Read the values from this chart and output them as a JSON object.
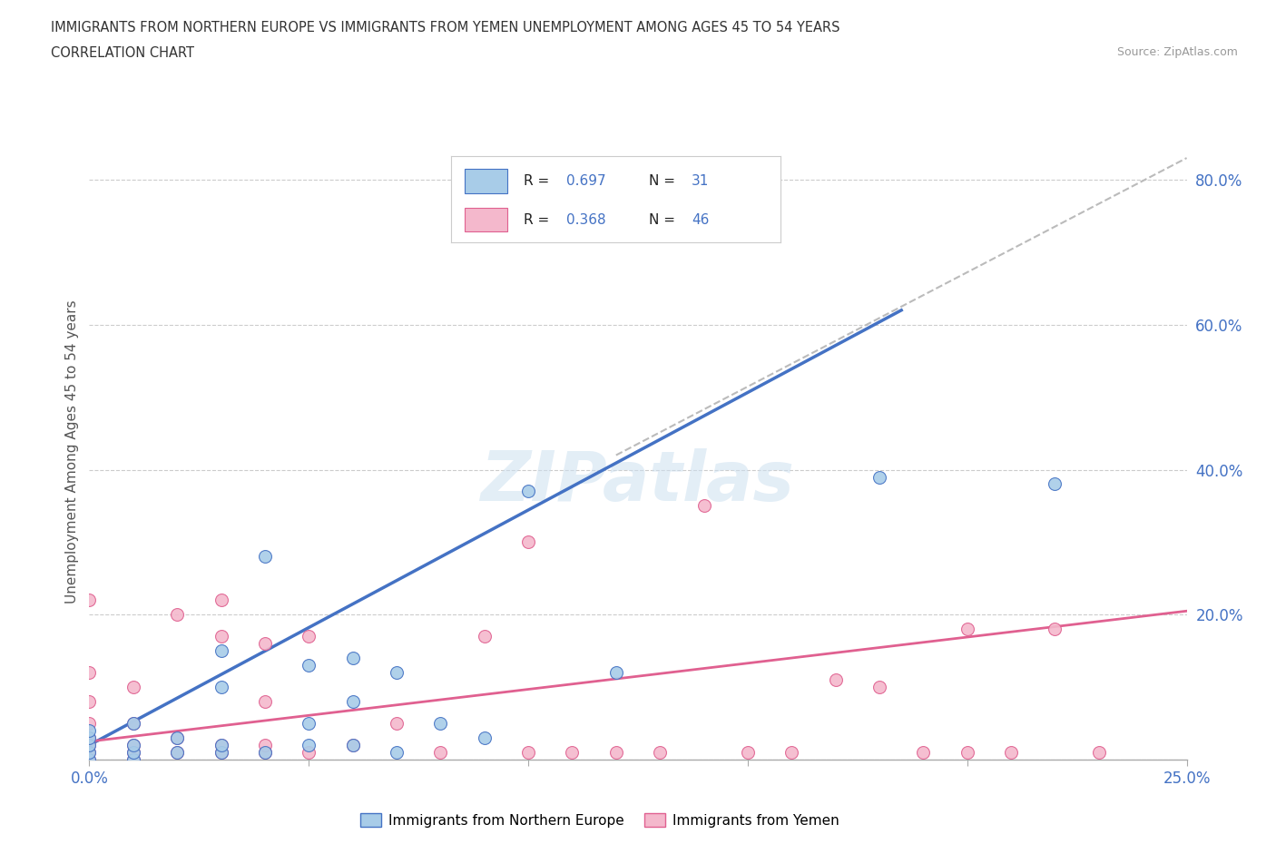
{
  "title_line1": "IMMIGRANTS FROM NORTHERN EUROPE VS IMMIGRANTS FROM YEMEN UNEMPLOYMENT AMONG AGES 45 TO 54 YEARS",
  "title_line2": "CORRELATION CHART",
  "source_text": "Source: ZipAtlas.com",
  "ylabel": "Unemployment Among Ages 45 to 54 years",
  "xlim": [
    0.0,
    0.25
  ],
  "ylim": [
    0.0,
    0.85
  ],
  "xticks": [
    0.0,
    0.05,
    0.1,
    0.15,
    0.2,
    0.25
  ],
  "xtick_labels": [
    "0.0%",
    "",
    "",
    "",
    "",
    "25.0%"
  ],
  "yticks": [
    0.0,
    0.2,
    0.4,
    0.6,
    0.8
  ],
  "ytick_labels": [
    "",
    "20.0%",
    "40.0%",
    "60.0%",
    "80.0%"
  ],
  "watermark": "ZIPatlas",
  "blue_color": "#a8cce8",
  "pink_color": "#f4b8cc",
  "blue_line_color": "#4472c4",
  "pink_line_color": "#e06090",
  "dashed_line_color": "#bbbbbb",
  "tick_color": "#4472c4",
  "background_color": "#ffffff",
  "blue_scatter_x": [
    0.0,
    0.0,
    0.0,
    0.0,
    0.0,
    0.01,
    0.01,
    0.01,
    0.01,
    0.02,
    0.02,
    0.03,
    0.03,
    0.03,
    0.03,
    0.04,
    0.04,
    0.05,
    0.05,
    0.05,
    0.06,
    0.06,
    0.06,
    0.07,
    0.07,
    0.08,
    0.09,
    0.1,
    0.12,
    0.18,
    0.22
  ],
  "blue_scatter_y": [
    0.0,
    0.01,
    0.02,
    0.03,
    0.04,
    0.0,
    0.01,
    0.02,
    0.05,
    0.01,
    0.03,
    0.01,
    0.02,
    0.1,
    0.15,
    0.01,
    0.28,
    0.02,
    0.05,
    0.13,
    0.02,
    0.08,
    0.14,
    0.01,
    0.12,
    0.05,
    0.03,
    0.37,
    0.12,
    0.39,
    0.38
  ],
  "pink_scatter_x": [
    0.0,
    0.0,
    0.0,
    0.0,
    0.0,
    0.0,
    0.0,
    0.0,
    0.01,
    0.01,
    0.01,
    0.01,
    0.01,
    0.02,
    0.02,
    0.02,
    0.03,
    0.03,
    0.03,
    0.03,
    0.04,
    0.04,
    0.04,
    0.04,
    0.05,
    0.05,
    0.06,
    0.07,
    0.08,
    0.09,
    0.1,
    0.1,
    0.11,
    0.12,
    0.13,
    0.14,
    0.15,
    0.16,
    0.17,
    0.18,
    0.19,
    0.2,
    0.2,
    0.21,
    0.22,
    0.23
  ],
  "pink_scatter_y": [
    0.0,
    0.01,
    0.02,
    0.03,
    0.05,
    0.08,
    0.12,
    0.22,
    0.0,
    0.01,
    0.02,
    0.05,
    0.1,
    0.01,
    0.03,
    0.2,
    0.01,
    0.02,
    0.17,
    0.22,
    0.01,
    0.02,
    0.08,
    0.16,
    0.01,
    0.17,
    0.02,
    0.05,
    0.01,
    0.17,
    0.01,
    0.3,
    0.01,
    0.01,
    0.01,
    0.35,
    0.01,
    0.01,
    0.11,
    0.1,
    0.01,
    0.01,
    0.18,
    0.01,
    0.18,
    0.01
  ],
  "blue_trendline_x": [
    0.0,
    0.185
  ],
  "blue_trendline_y": [
    0.02,
    0.62
  ],
  "pink_trendline_x": [
    0.0,
    0.25
  ],
  "pink_trendline_y": [
    0.025,
    0.205
  ],
  "dashed_line_x": [
    0.12,
    0.25
  ],
  "dashed_line_y": [
    0.42,
    0.83
  ],
  "legend_label1": "Immigrants from Northern Europe",
  "legend_label2": "Immigrants from Yemen"
}
